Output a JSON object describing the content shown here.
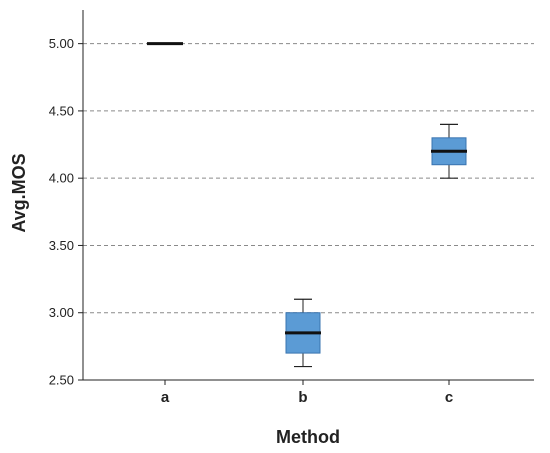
{
  "chart_data": {
    "type": "box",
    "xlabel": "Method",
    "ylabel": "Avg.MOS",
    "ylim": [
      2.5,
      5.25
    ],
    "yticks": [
      "2.50",
      "3.00",
      "3.50",
      "4.00",
      "4.50",
      "5.00"
    ],
    "grid": "horizontal-dashed",
    "categories": [
      "a",
      "b",
      "c"
    ],
    "boxes": [
      {
        "category": "a",
        "min": 5.0,
        "q1": 5.0,
        "median": 5.0,
        "q3": 5.0,
        "max": 5.0
      },
      {
        "category": "b",
        "min": 2.6,
        "q1": 2.7,
        "median": 2.85,
        "q3": 3.0,
        "max": 3.1
      },
      {
        "category": "c",
        "min": 4.0,
        "q1": 4.1,
        "median": 4.2,
        "q3": 4.3,
        "max": 4.4
      }
    ],
    "box_color": "#5b9bd5"
  }
}
